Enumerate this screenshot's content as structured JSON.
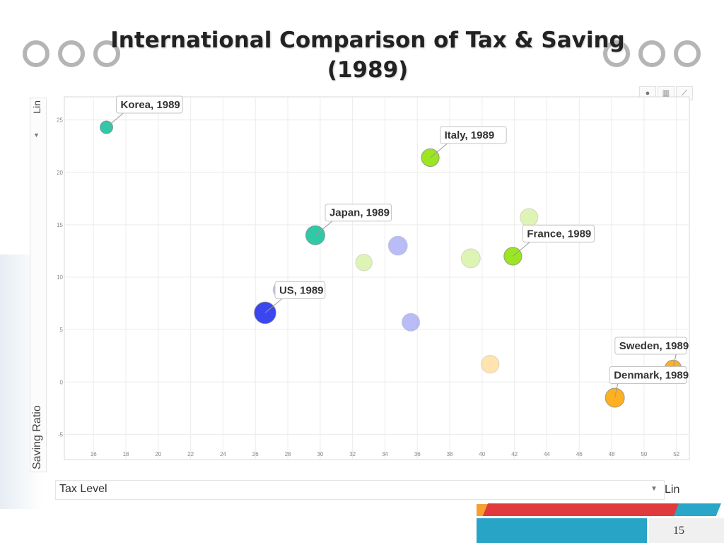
{
  "slide": {
    "title_line1": "International Comparison of Tax & Saving",
    "title_line2": "(1989)",
    "page_number": "15"
  },
  "controls": {
    "y_scale": "Lin",
    "x_scale": "Lin",
    "dropdown_arrow": "▼",
    "side_arrow": "▼"
  },
  "chart_data": {
    "type": "scatter",
    "xlabel": "Tax Level",
    "ylabel": "Saving Ratio",
    "xlim": [
      14.2,
      52.8
    ],
    "ylim": [
      -7.4,
      27.2
    ],
    "x_ticks": [
      16,
      18,
      20,
      22,
      24,
      26,
      28,
      30,
      32,
      34,
      36,
      38,
      40,
      42,
      44,
      46,
      48,
      50,
      52
    ],
    "y_ticks": [
      -5,
      0,
      5,
      10,
      15,
      20,
      25
    ],
    "grid": true,
    "points": [
      {
        "label": "Korea, 1989",
        "x": 16.8,
        "y": 24.3,
        "size": 1.0,
        "color": "#2fc9a8",
        "opacity": 1.0
      },
      {
        "label": "Italy, 1989",
        "x": 36.8,
        "y": 21.4,
        "size": 1.4,
        "color": "#9be522",
        "opacity": 1.0
      },
      {
        "label": "Japan, 1989",
        "x": 29.7,
        "y": 14.0,
        "size": 1.5,
        "color": "#2fc9a8",
        "opacity": 1.0
      },
      {
        "label": "",
        "x": 34.8,
        "y": 13.0,
        "size": 1.5,
        "color": "#8a8ff0",
        "opacity": 0.6
      },
      {
        "label": "",
        "x": 42.9,
        "y": 15.7,
        "size": 1.4,
        "color": "#c8ec84",
        "opacity": 0.6
      },
      {
        "label": "France, 1989",
        "x": 41.9,
        "y": 12.0,
        "size": 1.4,
        "color": "#9be522",
        "opacity": 1.0
      },
      {
        "label": "",
        "x": 32.7,
        "y": 11.4,
        "size": 1.3,
        "color": "#c8ec84",
        "opacity": 0.6
      },
      {
        "label": "",
        "x": 39.3,
        "y": 11.8,
        "size": 1.5,
        "color": "#c8ec84",
        "opacity": 0.6
      },
      {
        "label": "",
        "x": 27.6,
        "y": 8.8,
        "size": 1.3,
        "color": "#8a8ff0",
        "opacity": 0.6
      },
      {
        "label": "US, 1989",
        "x": 26.6,
        "y": 6.6,
        "size": 1.7,
        "color": "#3a46f0",
        "opacity": 1.0
      },
      {
        "label": "",
        "x": 35.6,
        "y": 5.7,
        "size": 1.4,
        "color": "#8a8ff0",
        "opacity": 0.6
      },
      {
        "label": "",
        "x": 40.5,
        "y": 1.7,
        "size": 1.4,
        "color": "#ffd27a",
        "opacity": 0.6
      },
      {
        "label": "Sweden, 1989",
        "x": 51.8,
        "y": 1.3,
        "size": 1.3,
        "color": "#ffb020",
        "opacity": 1.0
      },
      {
        "label": "Denmark, 1989",
        "x": 48.2,
        "y": -1.5,
        "size": 1.5,
        "color": "#ffb020",
        "opacity": 1.0
      }
    ]
  }
}
